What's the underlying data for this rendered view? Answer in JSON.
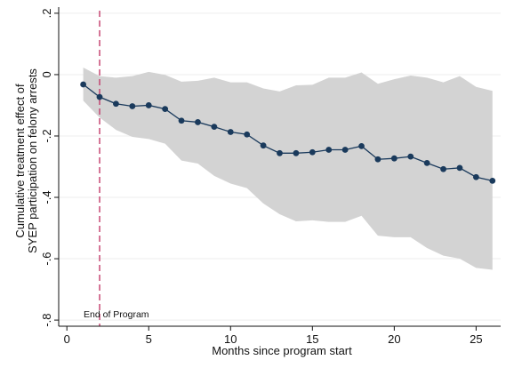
{
  "chart_data": {
    "type": "line",
    "xlabel": "Months since program start",
    "ylabel_lines": [
      "Cumulative treatment effect of",
      "SYEP participation on felony arrests"
    ],
    "x_ticks": [
      0,
      5,
      10,
      15,
      20,
      25
    ],
    "y_ticks": [
      0.2,
      0,
      -0.2,
      -0.4,
      -0.6,
      -0.8
    ],
    "y_tick_labels": [
      ".2",
      "0",
      "-.2",
      "-.4",
      "-.6",
      "-.8"
    ],
    "x_tick_labels": [
      "0",
      "5",
      "10",
      "15",
      "20",
      "25"
    ],
    "xlim": [
      -0.5,
      26.5
    ],
    "ylim": [
      -0.82,
      0.22
    ],
    "grid": true,
    "x": [
      1,
      2,
      3,
      4,
      5,
      6,
      7,
      8,
      9,
      10,
      11,
      12,
      13,
      14,
      15,
      16,
      17,
      18,
      19,
      20,
      21,
      22,
      23,
      24,
      25,
      26
    ],
    "series": [
      {
        "values": [
          -0.032,
          -0.073,
          -0.095,
          -0.103,
          -0.1,
          -0.112,
          -0.15,
          -0.155,
          -0.17,
          -0.187,
          -0.195,
          -0.231,
          -0.256,
          -0.256,
          -0.253,
          -0.245,
          -0.245,
          -0.233,
          -0.276,
          -0.273,
          -0.267,
          -0.288,
          -0.308,
          -0.304,
          -0.334,
          -0.346
        ],
        "color": "#1a3a5c"
      }
    ],
    "ci_upper": [
      0.023,
      -0.005,
      -0.01,
      -0.005,
      0.009,
      -0.001,
      -0.023,
      -0.02,
      -0.01,
      -0.025,
      -0.025,
      -0.045,
      -0.055,
      -0.035,
      -0.033,
      -0.01,
      -0.01,
      0.007,
      -0.03,
      -0.015,
      -0.003,
      -0.01,
      -0.025,
      -0.005,
      -0.04,
      -0.053
    ],
    "ci_lower": [
      -0.085,
      -0.14,
      -0.18,
      -0.203,
      -0.21,
      -0.225,
      -0.28,
      -0.29,
      -0.33,
      -0.355,
      -0.37,
      -0.42,
      -0.455,
      -0.478,
      -0.475,
      -0.48,
      -0.48,
      -0.46,
      -0.525,
      -0.53,
      -0.53,
      -0.565,
      -0.59,
      -0.6,
      -0.63,
      -0.636
    ],
    "ci_color": "#d3d3d3",
    "vline": {
      "x": 2,
      "color": "#c23b6a",
      "style": "dashed",
      "label": "End of Program"
    }
  }
}
